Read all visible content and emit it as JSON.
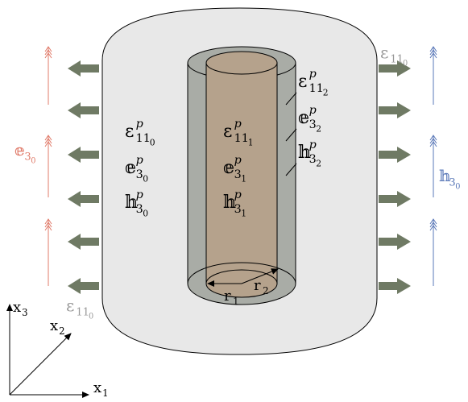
{
  "labels": {
    "outer": [
      {
        "base": "ε",
        "sup": "p",
        "sub": "11",
        "subsub": "0"
      },
      {
        "base": "𝕖",
        "sup": "p",
        "sub": "3",
        "subsub": "0"
      },
      {
        "base": "𝕙",
        "sup": "p",
        "sub": "3",
        "subsub": "0"
      }
    ],
    "core": [
      {
        "base": "ε",
        "sup": "p",
        "sub": "11",
        "subsub": "1"
      },
      {
        "base": "𝕖",
        "sup": "p",
        "sub": "3",
        "subsub": "1"
      },
      {
        "base": "𝕙",
        "sup": "p",
        "sub": "3",
        "subsub": "1"
      }
    ],
    "shell": [
      {
        "base": "ε",
        "sup": "p",
        "sub": "11",
        "subsub": "2"
      },
      {
        "base": "𝕖",
        "sup": "p",
        "sub": "3",
        "subsub": "2"
      },
      {
        "base": "𝕙",
        "sup": "p",
        "sub": "3",
        "subsub": "2"
      }
    ]
  },
  "applied": {
    "left_strain": {
      "base": "ε",
      "sub": "11",
      "subsub": "0"
    },
    "right_strain": {
      "base": "ε",
      "sub": "11",
      "subsub": "0"
    },
    "left_field": {
      "base": "𝕖",
      "sub": "3",
      "subsub": "0"
    },
    "right_field": {
      "base": "𝕙",
      "sub": "3",
      "subsub": "0"
    }
  },
  "radii": [
    {
      "base": "r",
      "sub": "1"
    },
    {
      "base": "r",
      "sub": "2"
    }
  ],
  "axes": [
    {
      "base": "x",
      "sub": "1"
    },
    {
      "base": "x",
      "sub": "2"
    },
    {
      "base": "x",
      "sub": "3"
    }
  ]
}
